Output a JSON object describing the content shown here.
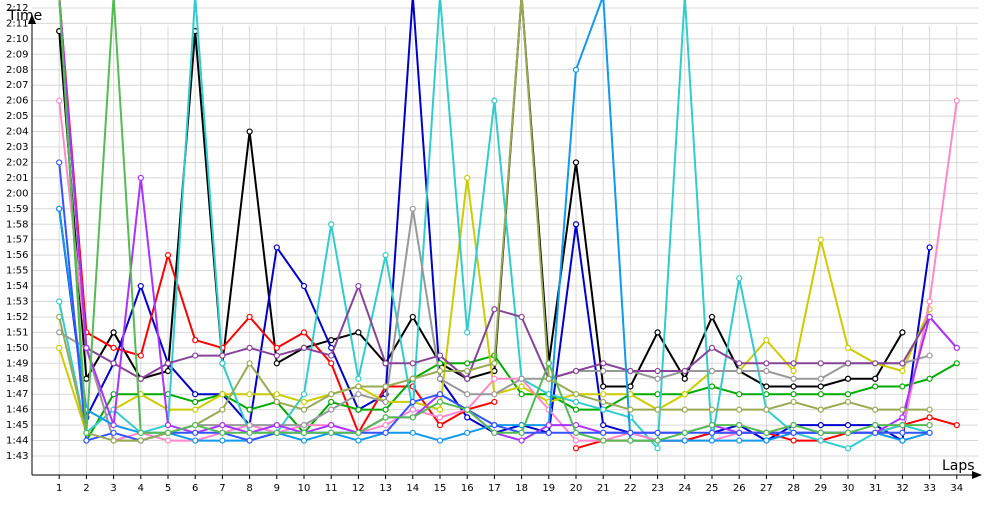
{
  "chart_data": {
    "type": "line",
    "title": "",
    "ylabel": "Time",
    "xlabel": "Laps",
    "x": [
      1,
      2,
      3,
      4,
      5,
      6,
      7,
      8,
      9,
      10,
      11,
      12,
      13,
      14,
      15,
      16,
      17,
      18,
      19,
      20,
      21,
      22,
      23,
      24,
      25,
      26,
      27,
      28,
      29,
      30,
      31,
      32,
      33,
      34
    ],
    "ylim": [
      102,
      135
    ],
    "xlim": [
      0,
      35
    ],
    "y_unit": "seconds",
    "y_tick_values": [
      103,
      104,
      105,
      106,
      107,
      108,
      109,
      110,
      111,
      112,
      113,
      114,
      115,
      116,
      117,
      118,
      119,
      120,
      121,
      122,
      123,
      124,
      125,
      126,
      127,
      128,
      129,
      130,
      131,
      132,
      133
    ],
    "y_tick_labels": [
      "1:43",
      "1:44",
      "1:45",
      "1:46",
      "1:47",
      "1:48",
      "1:49",
      "1:50",
      "1:51",
      "1:52",
      "1:53",
      "1:54",
      "1:55",
      "1:56",
      "1:57",
      "1:58",
      "1:59",
      "2:00",
      "2:01",
      "2:02",
      "2:03",
      "2:04",
      "2:05",
      "2:06",
      "2:07",
      "2:08",
      "2:09",
      "2:10",
      "2:11",
      "2:12",
      "2:13"
    ],
    "x_tick_labels": [
      "1",
      "2",
      "3",
      "4",
      "5",
      "6",
      "7",
      "8",
      "9",
      "10",
      "11",
      "12",
      "13",
      "14",
      "15",
      "16",
      "17",
      "18",
      "19",
      "20",
      "21",
      "22",
      "23",
      "24",
      "25",
      "26",
      "27",
      "28",
      "29",
      "30",
      "31",
      "32",
      "33",
      "34"
    ],
    "grid": true,
    "series": [
      {
        "color": "#000000",
        "values": [
          130.5,
          108,
          111,
          108,
          108.5,
          130.5,
          109,
          124,
          109,
          110,
          110.5,
          111,
          109,
          112,
          109,
          108,
          108.5,
          140,
          109,
          122,
          107.5,
          107.5,
          111,
          108,
          112,
          108.5,
          107.5,
          107.5,
          107.5,
          108,
          108,
          111,
          null,
          null
        ]
      },
      {
        "color": "#0000cc",
        "values": [
          119,
          105.5,
          109,
          114,
          109,
          107,
          107,
          105,
          116.5,
          114,
          110,
          106,
          107,
          140,
          108,
          105.5,
          104.5,
          105,
          104.5,
          118,
          105,
          104.5,
          104,
          104,
          104.5,
          105,
          104,
          105,
          105,
          105,
          105,
          104,
          116.5,
          null
        ]
      },
      {
        "color": "#ff0000",
        "values": [
          140,
          111,
          110,
          109.5,
          116,
          110.5,
          110,
          112,
          110,
          111,
          109,
          104.5,
          107.5,
          107.5,
          105,
          106,
          106.5,
          null,
          null,
          103.5,
          104,
          104,
          104,
          104,
          104.5,
          104.5,
          104.5,
          104,
          104,
          104.5,
          104.5,
          105,
          105.5,
          105
        ]
      },
      {
        "color": "#00aa00",
        "values": [
          140,
          104,
          107,
          107,
          107,
          106.5,
          107,
          106,
          106.5,
          104.5,
          106.5,
          106,
          106,
          108,
          109,
          109,
          109.5,
          107,
          107,
          106,
          106,
          107,
          107,
          107,
          107.5,
          107,
          107,
          107,
          107,
          107,
          107.5,
          107.5,
          108,
          109
        ]
      },
      {
        "color": "#cccc00",
        "values": [
          110,
          104.5,
          106,
          107,
          106,
          106,
          107,
          107,
          107,
          106.5,
          107,
          107.5,
          106.5,
          106.5,
          106,
          121,
          107,
          107.5,
          106.5,
          107,
          107,
          107,
          106,
          107,
          108.5,
          108.5,
          110.5,
          108.5,
          117,
          110,
          109,
          108.5,
          112.5,
          null
        ]
      },
      {
        "color": "#33cccc",
        "values": [
          113,
          104.5,
          106,
          104.5,
          105,
          140,
          109,
          104.5,
          104.5,
          107,
          118,
          108,
          116,
          106,
          140,
          111,
          126,
          108,
          107,
          106.5,
          106,
          105.5,
          103.5,
          140,
          104,
          114.5,
          106,
          104.5,
          104,
          103.5,
          104.5,
          105,
          104.5,
          null
        ]
      },
      {
        "color": "#ff88cc",
        "values": [
          126,
          110,
          104,
          104.5,
          104,
          104,
          104.5,
          105,
          104.5,
          105,
          105,
          104.5,
          105,
          106,
          105.5,
          106,
          108,
          108,
          106,
          104,
          104,
          104.5,
          104,
          104,
          104,
          104.5,
          104.5,
          105,
          104.5,
          104.5,
          104.5,
          104.5,
          113,
          126
        ]
      },
      {
        "color": "#999999",
        "values": [
          111,
          110,
          104,
          104,
          104.5,
          105,
          105,
          105,
          105,
          105,
          106,
          107,
          106.5,
          119,
          108,
          107,
          107,
          108,
          108,
          108.5,
          108.5,
          108.5,
          108,
          108.5,
          108.5,
          108.5,
          108.5,
          108,
          108,
          109,
          109,
          109,
          109.5,
          null
        ]
      },
      {
        "color": "#884499",
        "values": [
          140,
          110,
          109,
          108,
          109,
          109.5,
          109.5,
          110,
          109.5,
          110,
          109.5,
          114,
          109,
          109,
          109.5,
          108,
          112.5,
          112,
          108,
          108.5,
          109,
          108.5,
          108.5,
          108.5,
          110,
          109,
          109,
          109,
          109,
          109,
          109,
          109,
          112,
          110
        ]
      },
      {
        "color": "#1199ee",
        "values": [
          119,
          106,
          105,
          104.5,
          104.5,
          104,
          104,
          104,
          104.5,
          104,
          104.5,
          104,
          104.5,
          104.5,
          104,
          104.5,
          105,
          105,
          105,
          128,
          140,
          104,
          104,
          104,
          104,
          104,
          104,
          104.5,
          104.5,
          104.5,
          104.5,
          104,
          104.5,
          null
        ]
      },
      {
        "color": "#aa33ff",
        "values": [
          140,
          110,
          105,
          121,
          105,
          104.5,
          105,
          104.5,
          105,
          104.5,
          105,
          104.5,
          105.5,
          105.5,
          107,
          106,
          104.5,
          104,
          105,
          105,
          104.5,
          104.5,
          104.5,
          104.5,
          105,
          104.5,
          104.5,
          104.5,
          104.5,
          104.5,
          104.5,
          105.5,
          112,
          110
        ]
      },
      {
        "color": "#3355ff",
        "values": [
          122,
          104,
          104.5,
          104,
          104.5,
          104.5,
          104.5,
          104,
          104.5,
          104.5,
          104.5,
          104.5,
          104.5,
          106.5,
          107,
          106,
          105,
          104.5,
          104.5,
          104.5,
          104.5,
          104.5,
          104.5,
          104.5,
          104.5,
          104.5,
          104.5,
          104.5,
          104.5,
          104.5,
          104.5,
          104.5,
          104.5,
          null
        ]
      },
      {
        "color": "#99aa55",
        "values": [
          112,
          104.5,
          104,
          104,
          104.5,
          105,
          106,
          109,
          106.5,
          106,
          107,
          107.5,
          107.5,
          108,
          108.5,
          108.5,
          109,
          140,
          108,
          107,
          106.5,
          106,
          106,
          106,
          106,
          106,
          106,
          106.5,
          106,
          106.5,
          106,
          106,
          106,
          null
        ]
      },
      {
        "color": "#55bb55",
        "values": [
          140,
          104.5,
          140,
          104.5,
          104.5,
          105,
          104.5,
          104.5,
          104.5,
          104.5,
          104.5,
          104.5,
          105.5,
          105.5,
          106.5,
          106,
          104.5,
          104.5,
          109,
          104.5,
          104,
          104,
          104,
          104.5,
          105,
          105,
          104.5,
          105,
          104.5,
          104.5,
          105,
          105,
          105,
          null
        ]
      }
    ]
  }
}
